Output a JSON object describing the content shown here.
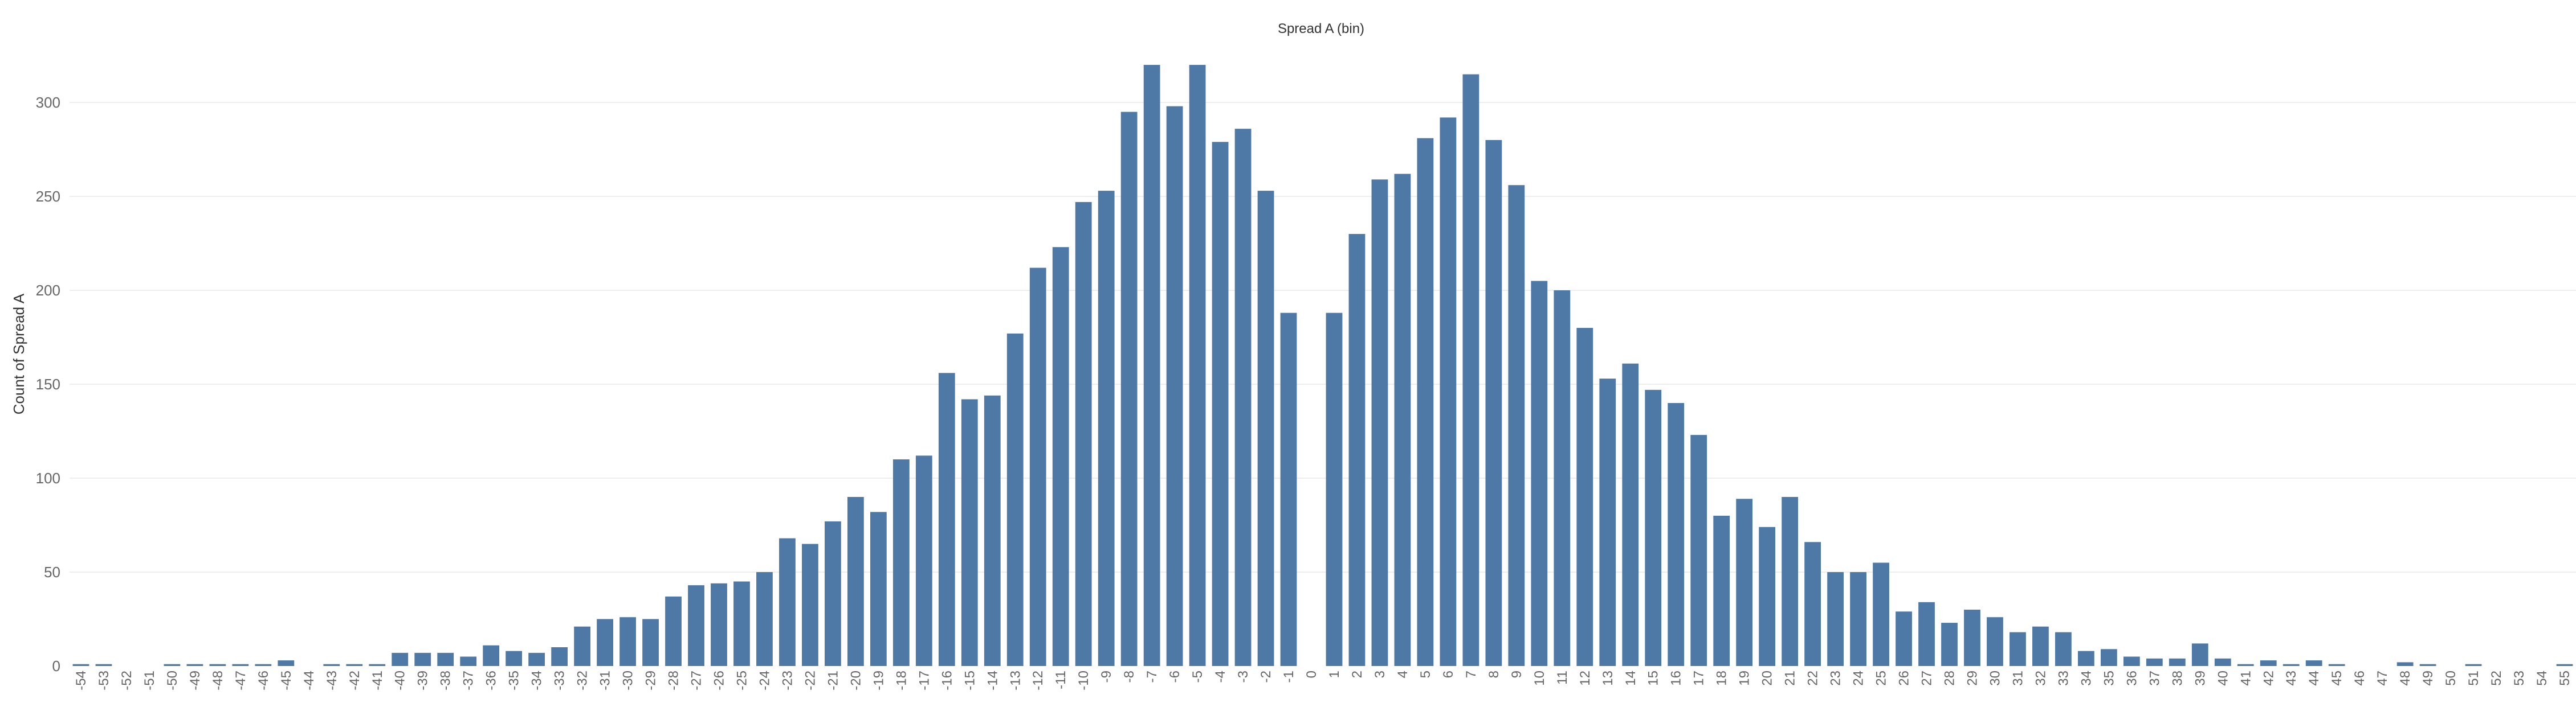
{
  "chart_data": {
    "type": "bar",
    "title": "Spread A (bin)",
    "xlabel": "",
    "ylabel": "Count of Spread A",
    "ylim": [
      0,
      325
    ],
    "yticks": [
      0,
      50,
      100,
      150,
      200,
      250,
      300
    ],
    "grid": true,
    "bar_color": "#4e79a7",
    "categories": [
      "-54",
      "-53",
      "-52",
      "-51",
      "-50",
      "-49",
      "-48",
      "-47",
      "-46",
      "-45",
      "-44",
      "-43",
      "-42",
      "-41",
      "-40",
      "-39",
      "-38",
      "-37",
      "-36",
      "-35",
      "-34",
      "-33",
      "-32",
      "-31",
      "-30",
      "-29",
      "-28",
      "-27",
      "-26",
      "-25",
      "-24",
      "-23",
      "-22",
      "-21",
      "-20",
      "-19",
      "-18",
      "-17",
      "-16",
      "-15",
      "-14",
      "-13",
      "-12",
      "-11",
      "-10",
      "-9",
      "-8",
      "-7",
      "-6",
      "-5",
      "-4",
      "-3",
      "-2",
      "-1",
      "0",
      "1",
      "2",
      "3",
      "4",
      "5",
      "6",
      "7",
      "8",
      "9",
      "10",
      "11",
      "12",
      "13",
      "14",
      "15",
      "16",
      "17",
      "18",
      "19",
      "20",
      "21",
      "22",
      "23",
      "24",
      "25",
      "26",
      "27",
      "28",
      "29",
      "30",
      "31",
      "32",
      "33",
      "34",
      "35",
      "36",
      "37",
      "38",
      "39",
      "40",
      "41",
      "42",
      "43",
      "44",
      "45",
      "46",
      "47",
      "48",
      "49",
      "50",
      "51",
      "52",
      "53",
      "54",
      "55"
    ],
    "values": [
      1,
      1,
      0,
      0,
      1,
      1,
      1,
      1,
      1,
      3,
      0,
      1,
      1,
      1,
      7,
      7,
      7,
      5,
      11,
      8,
      7,
      10,
      21,
      25,
      26,
      25,
      37,
      43,
      44,
      45,
      50,
      68,
      65,
      77,
      90,
      82,
      110,
      112,
      156,
      142,
      144,
      177,
      212,
      223,
      247,
      253,
      295,
      320,
      298,
      320,
      279,
      286,
      253,
      188,
      0,
      188,
      230,
      259,
      262,
      281,
      292,
      315,
      280,
      256,
      205,
      200,
      180,
      153,
      161,
      147,
      140,
      123,
      80,
      89,
      74,
      90,
      66,
      50,
      50,
      55,
      29,
      34,
      23,
      30,
      26,
      18,
      21,
      18,
      8,
      9,
      5,
      4,
      4,
      12,
      4,
      1,
      3,
      1,
      3,
      1,
      0,
      0,
      2,
      1,
      0,
      1,
      0,
      0,
      0,
      1
    ]
  }
}
